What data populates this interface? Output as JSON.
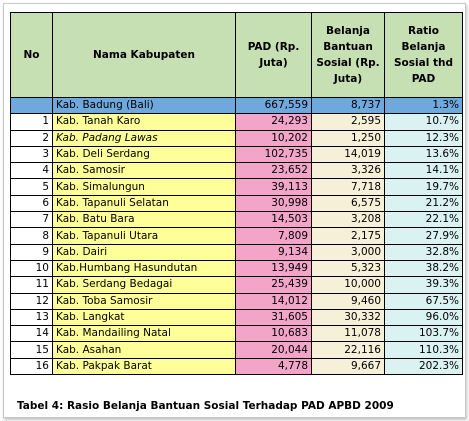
{
  "table": {
    "headers": {
      "no": "No",
      "name": "Nama Kabupaten",
      "pad": "PAD (Rp. Juta)",
      "belanja": "Belanja Bantuan Sosial (Rp. Juta)",
      "ratio": "Ratio Belanja Sosial thd PAD"
    },
    "highlight_row": {
      "no": "",
      "name": "Kab. Badung (Bali)",
      "pad": "667,559",
      "belanja": "8,737",
      "ratio": "1.3%"
    },
    "rows": [
      {
        "no": "1",
        "name": "Kab. Tanah Karo",
        "pad": "24,293",
        "belanja": "2,595",
        "ratio": "10.7%",
        "italic": false
      },
      {
        "no": "2",
        "name": "Kab. Padang Lawas",
        "pad": "10,202",
        "belanja": "1,250",
        "ratio": "12.3%",
        "italic": true
      },
      {
        "no": "3",
        "name": "Kab. Deli Serdang",
        "pad": "102,735",
        "belanja": "14,019",
        "ratio": "13.6%",
        "italic": false
      },
      {
        "no": "4",
        "name": "Kab. Samosir",
        "pad": "23,652",
        "belanja": "3,326",
        "ratio": "14.1%",
        "italic": false
      },
      {
        "no": "5",
        "name": "Kab. Simalungun",
        "pad": "39,113",
        "belanja": "7,718",
        "ratio": "19.7%",
        "italic": false
      },
      {
        "no": "6",
        "name": "Kab. Tapanuli Selatan",
        "pad": "30,998",
        "belanja": "6,575",
        "ratio": "21.2%",
        "italic": false
      },
      {
        "no": "7",
        "name": "Kab. Batu Bara",
        "pad": "14,503",
        "belanja": "3,208",
        "ratio": "22.1%",
        "italic": false
      },
      {
        "no": "8",
        "name": "Kab. Tapanuli Utara",
        "pad": "7,809",
        "belanja": "2,175",
        "ratio": "27.9%",
        "italic": false
      },
      {
        "no": "9",
        "name": "Kab. Dairi",
        "pad": "9,134",
        "belanja": "3,000",
        "ratio": "32.8%",
        "italic": false
      },
      {
        "no": "10",
        "name": "Kab.Humbang Hasundutan",
        "pad": "13,949",
        "belanja": "5,323",
        "ratio": "38.2%",
        "italic": false
      },
      {
        "no": "11",
        "name": "Kab. Serdang Bedagai",
        "pad": "25,439",
        "belanja": "10,000",
        "ratio": "39.3%",
        "italic": false
      },
      {
        "no": "12",
        "name": "Kab. Toba Samosir",
        "pad": "14,012",
        "belanja": "9,460",
        "ratio": "67.5%",
        "italic": false
      },
      {
        "no": "13",
        "name": "Kab. Langkat",
        "pad": "31,605",
        "belanja": "30,332",
        "ratio": "96.0%",
        "italic": false
      },
      {
        "no": "14",
        "name": "Kab. Mandailing Natal",
        "pad": "10,683",
        "belanja": "11,078",
        "ratio": "103.7%",
        "italic": false
      },
      {
        "no": "15",
        "name": "Kab. Asahan",
        "pad": "20,044",
        "belanja": "22,116",
        "ratio": "110.3%",
        "italic": false
      },
      {
        "no": "16",
        "name": "Kab. Pakpak Barat",
        "pad": "4,778",
        "belanja": "9,667",
        "ratio": "202.3%",
        "italic": false
      }
    ]
  },
  "caption": "Tabel 4: Rasio Belanja Bantuan Sosial Terhadap PAD APBD 2009",
  "colors": {
    "header_bg": "#c6e0b4",
    "highlight_bg": "#6fa8dc",
    "no_bg": "#ffffff",
    "name_bg": "#ffff99",
    "pad_bg": "#f2a5c8",
    "belanja_bg": "#f7f0d8",
    "ratio_bg": "#daf3f2"
  }
}
